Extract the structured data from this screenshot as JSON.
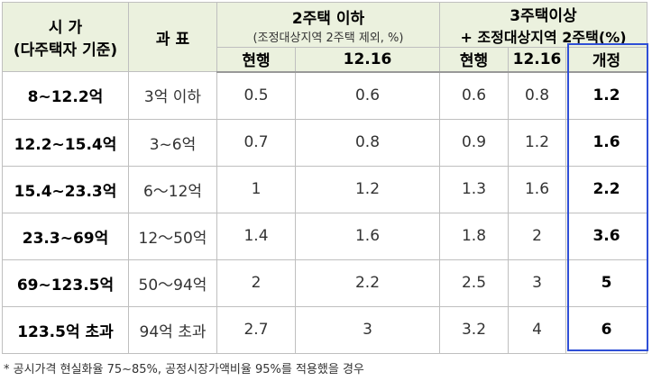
{
  "header": {
    "sale_price": [
      "시 가",
      "(다주택자 기준)"
    ],
    "tax_base": "과 표",
    "group1": {
      "title": "2주택 이하",
      "note": "(조정대상지역 2주택 제외, %)"
    },
    "group2": {
      "title": "3주택이상",
      "note": "+ 조정대상지역 2주택(%)"
    },
    "subcolumns": [
      "현행",
      "12.16",
      "현행",
      "12.16",
      "개정"
    ]
  },
  "rows": [
    [
      "8~12.2억",
      "3억 이하",
      "0.5",
      "0.6",
      "0.6",
      "0.8",
      "1.2"
    ],
    [
      "12.2~15.4억",
      "3~6억",
      "0.7",
      "0.8",
      "0.9",
      "1.2",
      "1.6"
    ],
    [
      "15.4~23.3억",
      "6～12억",
      "1",
      "1.2",
      "1.3",
      "1.6",
      "2.2"
    ],
    [
      "23.3~69억",
      "12～50억",
      "1.4",
      "1.6",
      "1.8",
      "2",
      "3.6"
    ],
    [
      "69~123.5억",
      "50～94억",
      "2",
      "2.2",
      "2.5",
      "3",
      "5"
    ],
    [
      "123.5억 초과",
      "94억 초과",
      "2.7",
      "3",
      "3.2",
      "4",
      "6"
    ]
  ],
  "footnote": "* 공시가격 현실화율 75~85%, 공정시장가액비율 95%를 적용했을 경우"
}
